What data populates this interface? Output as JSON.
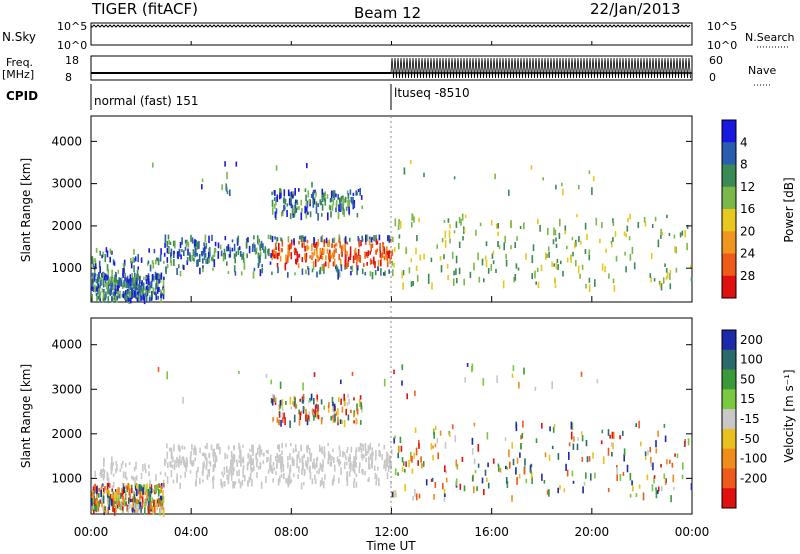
{
  "header": {
    "title": "TIGER (fitACF)",
    "beam": "Beam 12",
    "date": "22/Jan/2013"
  },
  "info_panels": {
    "nsky_label": "N.Sky",
    "nsky_ticks": [
      "10^5",
      "10^0"
    ],
    "nsearch_label": "N.Search",
    "freq_label_1": "Freq.",
    "freq_label_2": "[MHz]",
    "freq_ticks": [
      "18",
      "8"
    ],
    "nave_label": "Nave",
    "nave_ticks": [
      "60",
      "0"
    ],
    "cpid_label": "CPID",
    "cpid_1": "normal (fast) 151",
    "cpid_2": "ltuseq -8510"
  },
  "chart_data": [
    {
      "type": "heatmap",
      "title": "",
      "xlabel": "",
      "ylabel": "Slant Range [km]",
      "colorbar_label": "Power [dB]",
      "ylim": [
        200,
        4600
      ],
      "yticks": [
        "1000",
        "2000",
        "3000",
        "4000"
      ],
      "xticks": [
        "00:00",
        "04:00",
        "08:00",
        "12:00",
        "16:00",
        "20:00",
        "00:00"
      ],
      "colorbar_ticks": [
        "4",
        "8",
        "12",
        "16",
        "20",
        "24",
        "28"
      ],
      "colorbar_colors": [
        "#1818e0",
        "#2a5cb0",
        "#3b8a55",
        "#7ab84a",
        "#e8c81e",
        "#f0961e",
        "#ee5a1a",
        "#e01010"
      ]
    },
    {
      "type": "heatmap",
      "title": "",
      "xlabel": "Time UT",
      "ylabel": "Slant Range [km]",
      "colorbar_label": "Velocity [m s⁻¹]",
      "ylim": [
        200,
        4600
      ],
      "yticks": [
        "1000",
        "2000",
        "3000",
        "4000"
      ],
      "xticks": [
        "00:00",
        "04:00",
        "08:00",
        "12:00",
        "16:00",
        "20:00",
        "00:00"
      ],
      "colorbar_ticks": [
        "200",
        "100",
        "50",
        "15",
        "-15",
        "-50",
        "-100",
        "-200"
      ],
      "colorbar_colors": [
        "#1a2aa8",
        "#2a6a6a",
        "#3a9a3a",
        "#7ac840",
        "#c8c8c8",
        "#e8c020",
        "#f08c1a",
        "#ee5a1a",
        "#e01010"
      ]
    }
  ]
}
